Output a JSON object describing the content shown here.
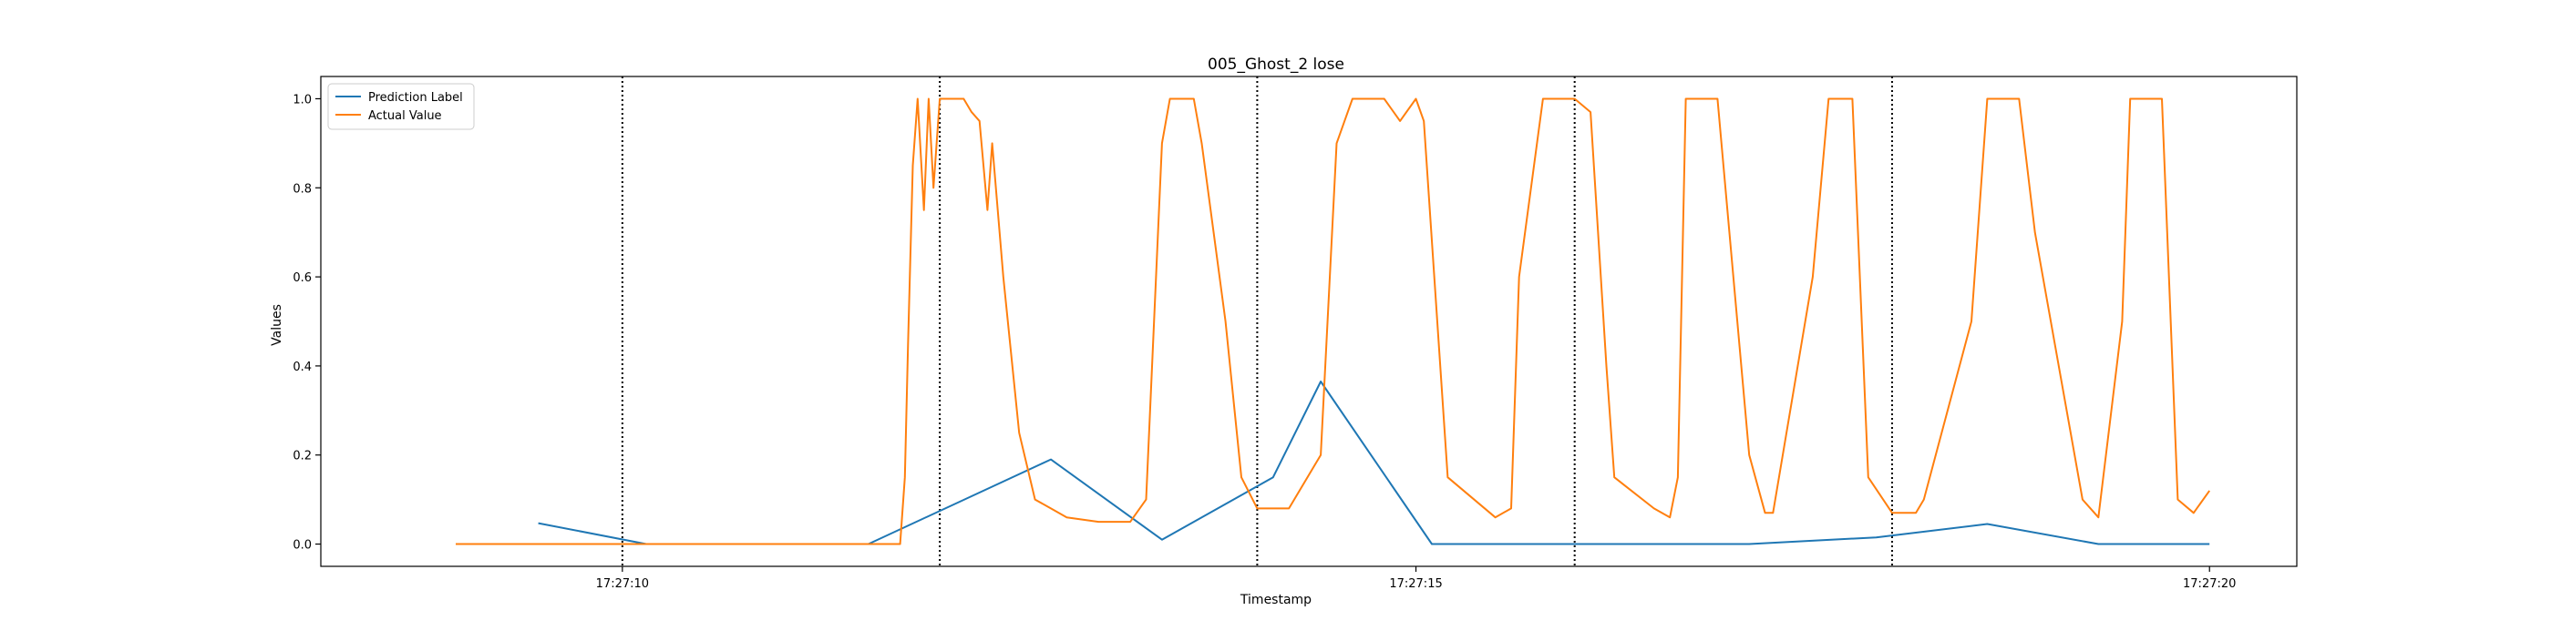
{
  "chart_data": {
    "type": "line",
    "title": "005_Ghost_2 lose",
    "xlabel": "Timestamp",
    "ylabel": "Values",
    "xlim": [
      "17:27:08.10",
      "17:27:20.55"
    ],
    "ylim": [
      -0.05,
      1.05
    ],
    "x_tick_labels": [
      "17:27:10",
      "17:27:15",
      "17:27:20"
    ],
    "x_tick_values": [
      "17:27:10",
      "17:27:15",
      "17:27:20"
    ],
    "y_tick_labels": [
      "0.0",
      "0.2",
      "0.4",
      "0.6",
      "0.8",
      "1.0"
    ],
    "y_tick_values": [
      0.0,
      0.2,
      0.4,
      0.6,
      0.8,
      1.0
    ],
    "grid": false,
    "legend_position": "top-left",
    "vertical_lines": {
      "style": "dotted",
      "color": "#000000",
      "x": [
        "17:27:10",
        "17:27:12",
        "17:27:14",
        "17:27:16",
        "17:27:18"
      ]
    },
    "series": [
      {
        "name": "Prediction Label",
        "color": "#1f77b4",
        "x": [
          "17:27:09.47",
          "17:27:10.15",
          "17:27:11.55",
          "17:27:12.70",
          "17:27:13.40",
          "17:27:14.10",
          "17:27:14.40",
          "17:27:15.10",
          "17:27:16.00",
          "17:27:17.10",
          "17:27:17.90",
          "17:27:18.60",
          "17:27:19.30",
          "17:27:20.00"
        ],
        "y": [
          0.047,
          0.0,
          0.0,
          0.19,
          0.01,
          0.15,
          0.365,
          0.0,
          0.0,
          0.0,
          0.015,
          0.045,
          0.0,
          0.0
        ]
      },
      {
        "name": "Actual Value",
        "color": "#ff7f0e",
        "x": [
          "17:27:08.95",
          "17:27:11.60",
          "17:27:11.75",
          "17:27:11.78",
          "17:27:11.80",
          "17:27:11.83",
          "17:27:11.86",
          "17:27:11.90",
          "17:27:11.93",
          "17:27:11.96",
          "17:27:12.00",
          "17:27:12.15",
          "17:27:12.20",
          "17:27:12.25",
          "17:27:12.30",
          "17:27:12.33",
          "17:27:12.40",
          "17:27:12.50",
          "17:27:12.60",
          "17:27:12.70",
          "17:27:12.80",
          "17:27:13.00",
          "17:27:13.20",
          "17:27:13.30",
          "17:27:13.35",
          "17:27:13.40",
          "17:27:13.45",
          "17:27:13.50",
          "17:27:13.60",
          "17:27:13.65",
          "17:27:13.80",
          "17:27:13.90",
          "17:27:14.00",
          "17:27:14.20",
          "17:27:14.40",
          "17:27:14.50",
          "17:27:14.60",
          "17:27:14.80",
          "17:27:14.90",
          "17:27:15.00",
          "17:27:15.05",
          "17:27:15.20",
          "17:27:15.50",
          "17:27:15.60",
          "17:27:15.65",
          "17:27:15.80",
          "17:27:15.90",
          "17:27:16.00",
          "17:27:16.10",
          "17:27:16.20",
          "17:27:16.25",
          "17:27:16.50",
          "17:27:16.60",
          "17:27:16.65",
          "17:27:16.70",
          "17:27:16.90",
          "17:27:17.10",
          "17:27:17.20",
          "17:27:17.25",
          "17:27:17.50",
          "17:27:17.60",
          "17:27:17.75",
          "17:27:17.85",
          "17:27:18.00",
          "17:27:18.15",
          "17:27:18.20",
          "17:27:18.50",
          "17:27:18.60",
          "17:27:18.70",
          "17:27:18.80",
          "17:27:18.90",
          "17:27:19.20",
          "17:27:19.30",
          "17:27:19.45",
          "17:27:19.50",
          "17:27:19.70",
          "17:27:19.80",
          "17:27:19.90",
          "17:27:20.00"
        ],
        "y": [
          0.0,
          0.0,
          0.0,
          0.15,
          0.45,
          0.85,
          1.0,
          0.75,
          1.0,
          0.8,
          1.0,
          1.0,
          0.97,
          0.95,
          0.75,
          0.9,
          0.6,
          0.25,
          0.1,
          0.08,
          0.06,
          0.05,
          0.05,
          0.1,
          0.5,
          0.9,
          1.0,
          1.0,
          1.0,
          0.9,
          0.5,
          0.15,
          0.08,
          0.08,
          0.2,
          0.9,
          1.0,
          1.0,
          0.95,
          1.0,
          0.95,
          0.15,
          0.06,
          0.08,
          0.6,
          1.0,
          1.0,
          1.0,
          0.97,
          0.4,
          0.15,
          0.08,
          0.06,
          0.15,
          1.0,
          1.0,
          0.2,
          0.07,
          0.07,
          0.6,
          1.0,
          1.0,
          0.15,
          0.07,
          0.07,
          0.1,
          0.5,
          1.0,
          1.0,
          1.0,
          0.7,
          0.1,
          0.06,
          0.5,
          1.0,
          1.0,
          0.1,
          0.07,
          0.12
        ]
      }
    ]
  }
}
